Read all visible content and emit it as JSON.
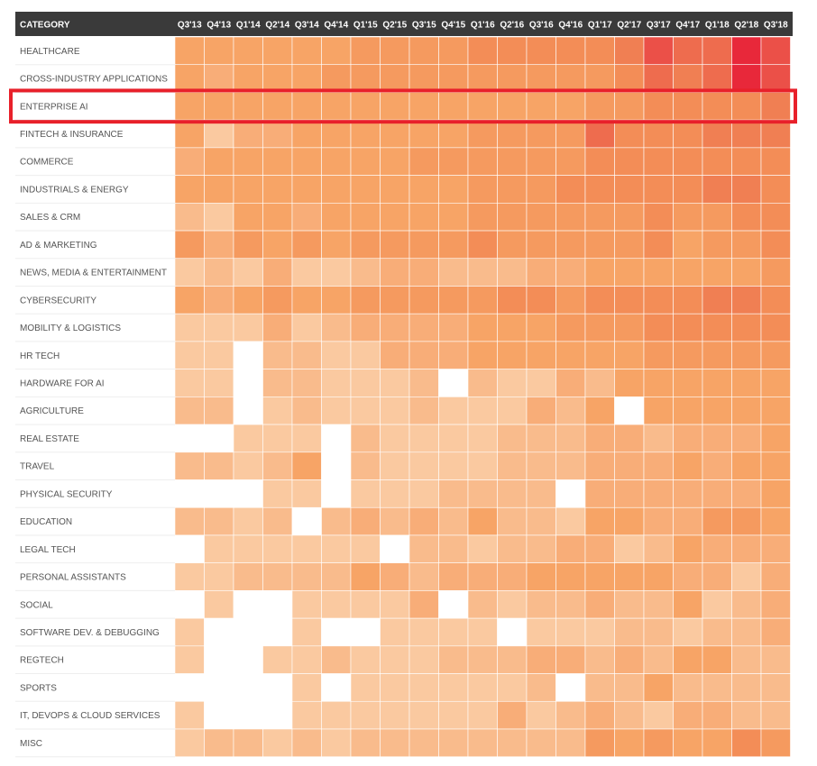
{
  "chart_data": {
    "type": "heatmap",
    "corner_label": "CATEGORY",
    "x": [
      "Q3'13",
      "Q4'13",
      "Q1'14",
      "Q2'14",
      "Q3'14",
      "Q4'14",
      "Q1'15",
      "Q2'15",
      "Q3'15",
      "Q4'15",
      "Q1'16",
      "Q2'16",
      "Q3'16",
      "Q4'16",
      "Q1'17",
      "Q2'17",
      "Q3'17",
      "Q4'17",
      "Q1'18",
      "Q2'18",
      "Q3'18"
    ],
    "y": [
      "HEALTHCARE",
      "CROSS-INDUSTRY APPLICATIONS",
      "ENTERPRISE AI",
      "FINTECH & INSURANCE",
      "COMMERCE",
      "INDUSTRIALS & ENERGY",
      "SALES & CRM",
      "AD & MARKETING",
      "NEWS, MEDIA & ENTERTAINMENT",
      "CYBERSECURITY",
      "MOBILITY & LOGISTICS",
      "HR TECH",
      "HARDWARE FOR AI",
      "AGRICULTURE",
      "REAL ESTATE",
      "TRAVEL",
      "PHYSICAL SECURITY",
      "EDUCATION",
      "LEGAL TECH",
      "PERSONAL ASSISTANTS",
      "SOCIAL",
      "SOFTWARE DEV. & DEBUGGING",
      "REGTECH",
      "SPORTS",
      "IT, DEVOPS & CLOUD SERVICES",
      "MISC"
    ],
    "values": [
      [
        4,
        4,
        4,
        4,
        4,
        4,
        5,
        5,
        5,
        5,
        6,
        6,
        6,
        6,
        6,
        7,
        9,
        8,
        8,
        10,
        9
      ],
      [
        4,
        3,
        4,
        4,
        4,
        5,
        5,
        5,
        5,
        5,
        5,
        5,
        5,
        5,
        5,
        6,
        8,
        7,
        8,
        10,
        9
      ],
      [
        4,
        4,
        4,
        4,
        4,
        4,
        4,
        4,
        4,
        4,
        4,
        4,
        4,
        4,
        5,
        5,
        6,
        6,
        6,
        6,
        7
      ],
      [
        4,
        1,
        3,
        3,
        4,
        4,
        4,
        4,
        4,
        4,
        5,
        5,
        5,
        5,
        8,
        6,
        6,
        6,
        7,
        7,
        7
      ],
      [
        3,
        4,
        4,
        4,
        4,
        4,
        4,
        4,
        5,
        5,
        5,
        5,
        5,
        5,
        6,
        6,
        6,
        6,
        6,
        6,
        6
      ],
      [
        4,
        4,
        4,
        4,
        4,
        4,
        4,
        4,
        4,
        4,
        5,
        5,
        5,
        6,
        6,
        6,
        6,
        6,
        7,
        7,
        6
      ],
      [
        2,
        1,
        4,
        4,
        3,
        4,
        4,
        4,
        4,
        4,
        5,
        5,
        5,
        5,
        5,
        5,
        6,
        5,
        5,
        6,
        6
      ],
      [
        5,
        3,
        5,
        4,
        5,
        4,
        5,
        5,
        5,
        5,
        6,
        5,
        5,
        5,
        5,
        5,
        6,
        4,
        5,
        5,
        6
      ],
      [
        1,
        2,
        1,
        3,
        1,
        1,
        2,
        3,
        3,
        2,
        2,
        2,
        3,
        3,
        4,
        4,
        4,
        4,
        4,
        4,
        5
      ],
      [
        4,
        3,
        4,
        5,
        4,
        4,
        5,
        5,
        5,
        5,
        5,
        6,
        6,
        5,
        6,
        6,
        6,
        6,
        7,
        7,
        6
      ],
      [
        1,
        1,
        1,
        3,
        1,
        2,
        3,
        3,
        3,
        3,
        4,
        4,
        4,
        5,
        5,
        5,
        6,
        6,
        6,
        6,
        6
      ],
      [
        1,
        1,
        0,
        2,
        2,
        1,
        1,
        3,
        3,
        3,
        4,
        4,
        4,
        4,
        4,
        4,
        5,
        5,
        5,
        5,
        5
      ],
      [
        1,
        1,
        0,
        2,
        2,
        1,
        1,
        1,
        2,
        0,
        2,
        1,
        1,
        3,
        2,
        4,
        4,
        4,
        4,
        4,
        4
      ],
      [
        2,
        2,
        0,
        1,
        2,
        1,
        1,
        1,
        2,
        1,
        1,
        1,
        3,
        2,
        4,
        0,
        4,
        4,
        4,
        4,
        4
      ],
      [
        0,
        0,
        1,
        1,
        1,
        0,
        2,
        1,
        1,
        1,
        1,
        2,
        2,
        2,
        3,
        3,
        2,
        3,
        3,
        3,
        4
      ],
      [
        2,
        2,
        1,
        2,
        4,
        0,
        2,
        1,
        1,
        1,
        1,
        2,
        2,
        2,
        3,
        3,
        3,
        4,
        3,
        4,
        4
      ],
      [
        0,
        0,
        0,
        1,
        1,
        0,
        1,
        1,
        1,
        2,
        2,
        2,
        2,
        0,
        3,
        3,
        3,
        3,
        3,
        3,
        4
      ],
      [
        2,
        2,
        1,
        2,
        0,
        2,
        3,
        2,
        3,
        2,
        4,
        2,
        2,
        1,
        4,
        4,
        3,
        3,
        5,
        5,
        4
      ],
      [
        0,
        1,
        1,
        1,
        1,
        1,
        1,
        0,
        2,
        2,
        1,
        2,
        2,
        3,
        3,
        1,
        2,
        4,
        3,
        3,
        3
      ],
      [
        1,
        1,
        2,
        2,
        2,
        2,
        4,
        3,
        2,
        3,
        3,
        3,
        4,
        4,
        4,
        4,
        4,
        3,
        3,
        1,
        3
      ],
      [
        0,
        1,
        0,
        0,
        1,
        1,
        1,
        1,
        3,
        0,
        2,
        1,
        2,
        2,
        3,
        2,
        2,
        4,
        1,
        2,
        3
      ],
      [
        1,
        0,
        0,
        0,
        1,
        0,
        0,
        1,
        1,
        1,
        1,
        0,
        1,
        1,
        1,
        2,
        2,
        1,
        2,
        2,
        3
      ],
      [
        1,
        0,
        0,
        1,
        1,
        2,
        1,
        1,
        1,
        2,
        2,
        2,
        3,
        3,
        2,
        3,
        2,
        4,
        4,
        2,
        2
      ],
      [
        0,
        0,
        0,
        0,
        1,
        0,
        1,
        1,
        1,
        1,
        1,
        1,
        2,
        0,
        2,
        2,
        4,
        2,
        2,
        2,
        2
      ],
      [
        1,
        0,
        0,
        0,
        1,
        1,
        1,
        1,
        1,
        1,
        1,
        3,
        1,
        2,
        3,
        2,
        1,
        3,
        3,
        2,
        2
      ],
      [
        1,
        2,
        2,
        1,
        2,
        1,
        2,
        2,
        2,
        2,
        2,
        2,
        2,
        2,
        5,
        4,
        5,
        4,
        4,
        6,
        5
      ]
    ],
    "value_scale": "relative intensity 0-10 (estimated from color; 0 = white)",
    "colors": {
      "header_bg": "#3a3a3a",
      "header_text": "#ffffff",
      "label_text": "#555555",
      "empty_cell": "#ffffff",
      "highlight_box": "#e8202a",
      "ramp": [
        "#ffffff",
        "#fac9a0",
        "#f9bb8c",
        "#f8ad78",
        "#f7a466",
        "#f59a5f",
        "#f38d57",
        "#f07f53",
        "#ee6c4e",
        "#eb5048",
        "#e8283a"
      ]
    },
    "highlighted_row": "ENTERPRISE AI"
  }
}
